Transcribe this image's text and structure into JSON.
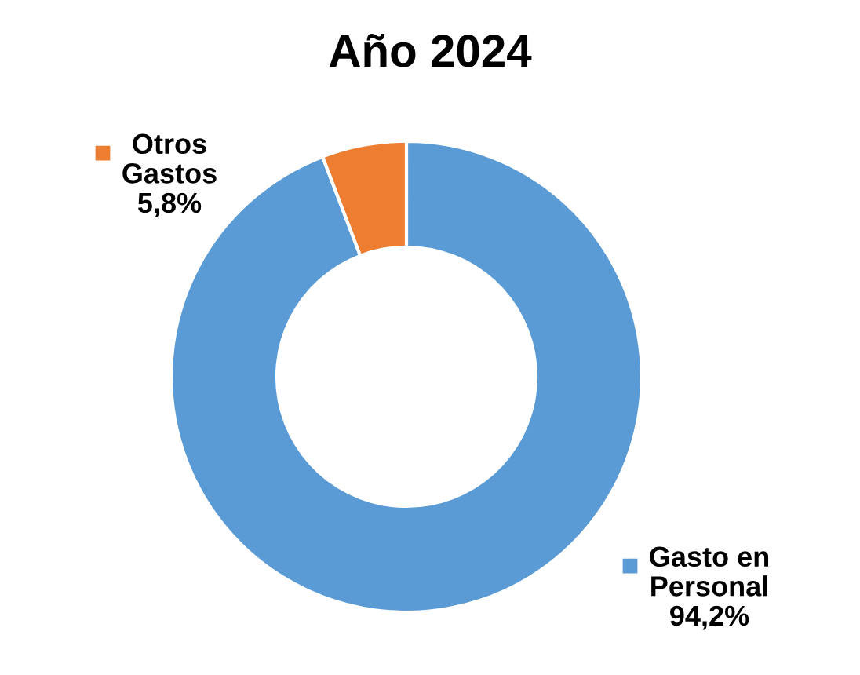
{
  "chart_data": {
    "type": "donut",
    "title": "Año 2024",
    "categories": [
      "Gasto en Personal",
      "Otros Gastos"
    ],
    "values": [
      94.2,
      5.8
    ],
    "value_labels": [
      "94,2%",
      "5,8%"
    ],
    "colors": [
      "#5b9bd5",
      "#ed7d31"
    ],
    "legend": "top right"
  }
}
